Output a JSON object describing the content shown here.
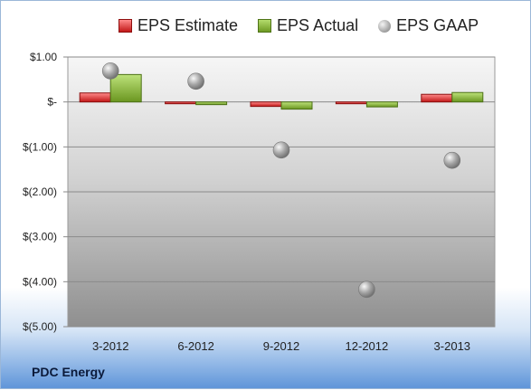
{
  "legend": {
    "estimate": "EPS Estimate",
    "actual": "EPS Actual",
    "gaap": "EPS GAAP"
  },
  "company": "PDC Energy",
  "colors": {
    "estimate": "#d42a2a",
    "actual": "#8cbf3f",
    "gaap": "#a9a9a9"
  },
  "chart_data": {
    "type": "bar",
    "categories": [
      "3-2012",
      "6-2012",
      "9-2012",
      "12-2012",
      "3-2013"
    ],
    "series": [
      {
        "name": "EPS Estimate",
        "type": "bar",
        "values": [
          0.2,
          0.0,
          -0.1,
          -0.03,
          0.17
        ]
      },
      {
        "name": "EPS Actual",
        "type": "bar",
        "values": [
          0.61,
          -0.06,
          -0.16,
          -0.11,
          0.21
        ]
      },
      {
        "name": "EPS GAAP",
        "type": "scatter",
        "values": [
          0.69,
          0.46,
          -1.07,
          -4.17,
          -1.3
        ]
      }
    ],
    "yticks": [
      1,
      0,
      -1,
      -2,
      -3,
      -4,
      -5
    ],
    "ytick_labels": [
      "$1.00",
      "$-",
      "$(1.00)",
      "$(2.00)",
      "$(3.00)",
      "$(4.00)",
      "$(5.00)"
    ],
    "ylim": [
      -5,
      1
    ],
    "grid": true,
    "legend_position": "top"
  }
}
